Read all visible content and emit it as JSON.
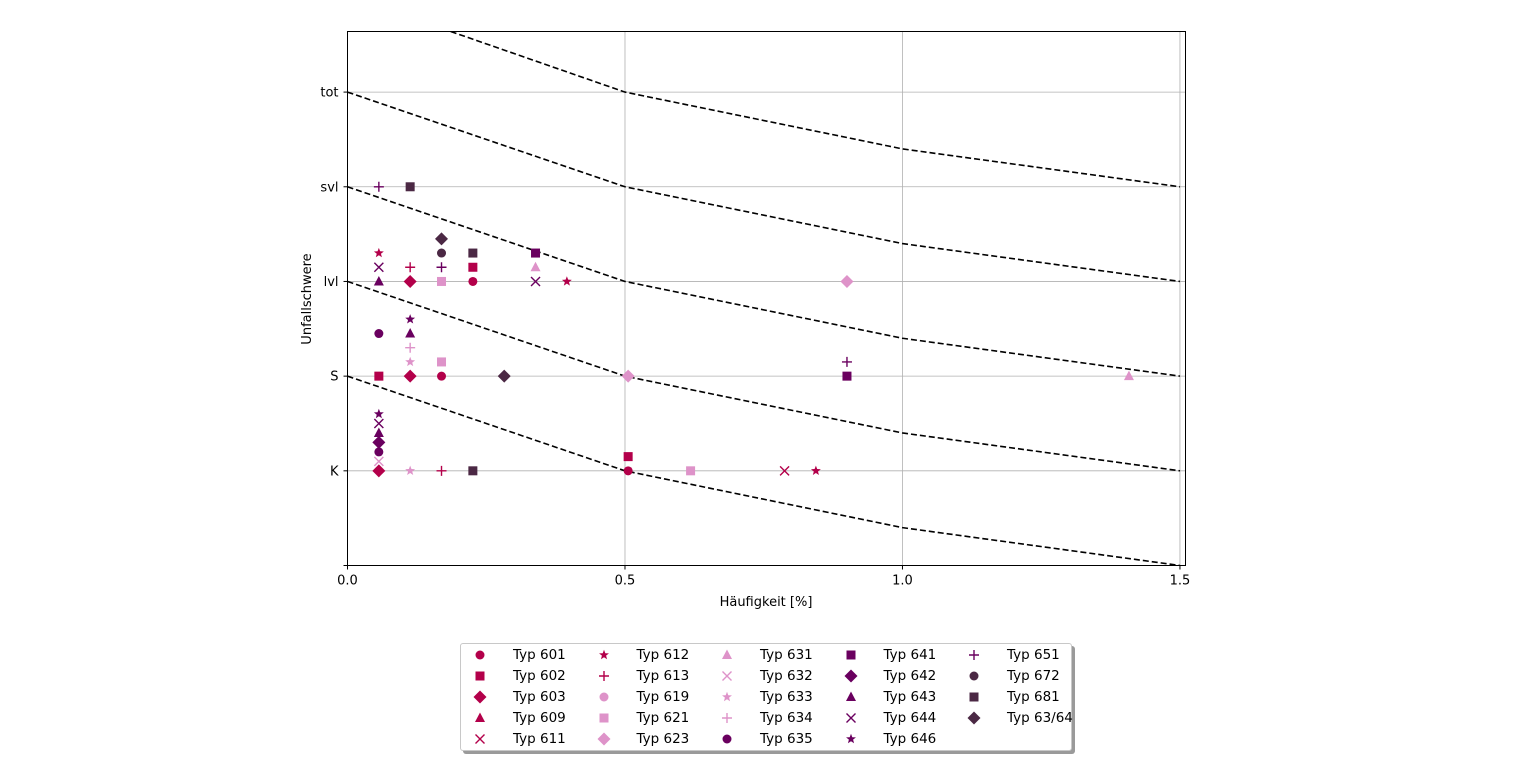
{
  "chart_data": {
    "type": "scatter",
    "xlabel": "Häufigkeit [%]",
    "ylabel": "Unfallschwere",
    "xlim": [
      0.0,
      1.51
    ],
    "ylim": [
      0,
      5.64
    ],
    "x_ticks": [
      0.0,
      0.5,
      1.0,
      1.5
    ],
    "x_tick_labels": [
      "0.0",
      "0.5",
      "1.0",
      "1.5"
    ],
    "y_ticks": [
      1,
      2,
      3,
      4,
      5
    ],
    "y_tick_labels": [
      "K",
      "S",
      "lvl",
      "svl",
      "tot"
    ],
    "grid": true,
    "legend_position": "below",
    "risk_lines": [
      {
        "x": [
          0,
          0.5,
          1.0,
          1.5
        ],
        "y": [
          2.0,
          1.0,
          0.4,
          0.0
        ]
      },
      {
        "x": [
          0,
          0.5,
          1.0,
          1.5
        ],
        "y": [
          3.0,
          2.0,
          1.4,
          1.0
        ]
      },
      {
        "x": [
          0,
          0.5,
          1.0,
          1.5
        ],
        "y": [
          4.0,
          3.0,
          2.4,
          2.0
        ]
      },
      {
        "x": [
          0,
          0.5,
          1.0,
          1.5
        ],
        "y": [
          5.0,
          4.0,
          3.4,
          3.0
        ]
      },
      {
        "x": [
          0.186,
          0.5,
          1.0,
          1.5
        ],
        "y": [
          5.64,
          5.0,
          4.4,
          4.0
        ]
      }
    ],
    "series": [
      {
        "name": "Typ 601",
        "marker": "circle",
        "color": "#b3004a",
        "points": [
          [
            0.5057,
            1.0
          ],
          [
            0.1694,
            2.0
          ],
          [
            0.2259,
            3.0
          ]
        ]
      },
      {
        "name": "Typ 602",
        "marker": "square",
        "color": "#b3004a",
        "points": [
          [
            0.5057,
            1.15
          ],
          [
            0.0565,
            2.0
          ],
          [
            0.2259,
            3.15
          ]
        ]
      },
      {
        "name": "Typ 603",
        "marker": "diamond",
        "color": "#b3004a",
        "points": [
          [
            0.0565,
            1.0
          ],
          [
            0.1129,
            2.0
          ],
          [
            0.1129,
            3.0
          ]
        ]
      },
      {
        "name": "Typ 609",
        "marker": "triangle",
        "color": "#b3004a",
        "points": []
      },
      {
        "name": "Typ 611",
        "marker": "x",
        "color": "#b3004a",
        "points": [
          [
            0.7876,
            1.0
          ]
        ]
      },
      {
        "name": "Typ 612",
        "marker": "star",
        "color": "#b3004a",
        "points": [
          [
            0.844,
            1.0
          ],
          [
            0.0565,
            3.3
          ],
          [
            0.3953,
            3.0
          ]
        ]
      },
      {
        "name": "Typ 613",
        "marker": "plus",
        "color": "#b3004a",
        "points": [
          [
            0.1694,
            1.0
          ],
          [
            0.1129,
            3.15
          ]
        ]
      },
      {
        "name": "Typ 619",
        "marker": "circle",
        "color": "#de93c9",
        "points": []
      },
      {
        "name": "Typ 621",
        "marker": "square",
        "color": "#de93c9",
        "points": [
          [
            0.6182,
            1.0
          ],
          [
            0.1694,
            2.15
          ],
          [
            0.1694,
            3.0
          ]
        ]
      },
      {
        "name": "Typ 623",
        "marker": "diamond",
        "color": "#de93c9",
        "points": [
          [
            0.5057,
            2.0
          ],
          [
            0.9,
            3.0
          ]
        ]
      },
      {
        "name": "Typ 631",
        "marker": "triangle",
        "color": "#de93c9",
        "points": [
          [
            1.4081,
            2.0
          ],
          [
            0.3388,
            3.15
          ]
        ]
      },
      {
        "name": "Typ 632",
        "marker": "x",
        "color": "#de93c9",
        "points": [
          [
            0.0565,
            1.1
          ]
        ]
      },
      {
        "name": "Typ 633",
        "marker": "star",
        "color": "#de93c9",
        "points": [
          [
            0.1129,
            1.0
          ],
          [
            0.1129,
            2.15
          ]
        ]
      },
      {
        "name": "Typ 634",
        "marker": "plus",
        "color": "#de93c9",
        "points": [
          [
            0.1129,
            2.3
          ]
        ]
      },
      {
        "name": "Typ 635",
        "marker": "circle",
        "color": "#6a005f",
        "points": [
          [
            0.0565,
            1.2
          ],
          [
            0.0565,
            2.45
          ]
        ]
      },
      {
        "name": "Typ 641",
        "marker": "square",
        "color": "#6a005f",
        "points": [
          [
            0.9,
            2.0
          ],
          [
            0.3388,
            3.3
          ]
        ]
      },
      {
        "name": "Typ 642",
        "marker": "diamond",
        "color": "#6a005f",
        "points": [
          [
            0.0565,
            1.3
          ]
        ]
      },
      {
        "name": "Typ 643",
        "marker": "triangle",
        "color": "#6a005f",
        "points": [
          [
            0.0565,
            1.4
          ],
          [
            0.1129,
            2.45
          ],
          [
            0.0565,
            3.0
          ]
        ]
      },
      {
        "name": "Typ 644",
        "marker": "x",
        "color": "#6a005f",
        "points": [
          [
            0.0565,
            1.5
          ],
          [
            0.0565,
            3.15
          ],
          [
            0.3388,
            3.0
          ]
        ]
      },
      {
        "name": "Typ 646",
        "marker": "star",
        "color": "#6a005f",
        "points": [
          [
            0.0565,
            1.6
          ],
          [
            0.1129,
            2.6
          ]
        ]
      },
      {
        "name": "Typ 651",
        "marker": "plus",
        "color": "#6a005f",
        "points": [
          [
            0.0565,
            4.0
          ],
          [
            0.1694,
            3.15
          ],
          [
            0.9,
            2.15
          ]
        ]
      },
      {
        "name": "Typ 672",
        "marker": "circle",
        "color": "#4b2844",
        "points": [
          [
            0.1694,
            3.3
          ]
        ]
      },
      {
        "name": "Typ 681",
        "marker": "square",
        "color": "#4b2844",
        "points": [
          [
            0.1129,
            4.0
          ],
          [
            0.2259,
            3.3
          ],
          [
            0.2259,
            1.0
          ]
        ]
      },
      {
        "name": "Typ 63/64",
        "marker": "diamond",
        "color": "#4b2844",
        "points": [
          [
            0.1694,
            3.45
          ],
          [
            0.2824,
            2.0
          ]
        ]
      }
    ]
  }
}
